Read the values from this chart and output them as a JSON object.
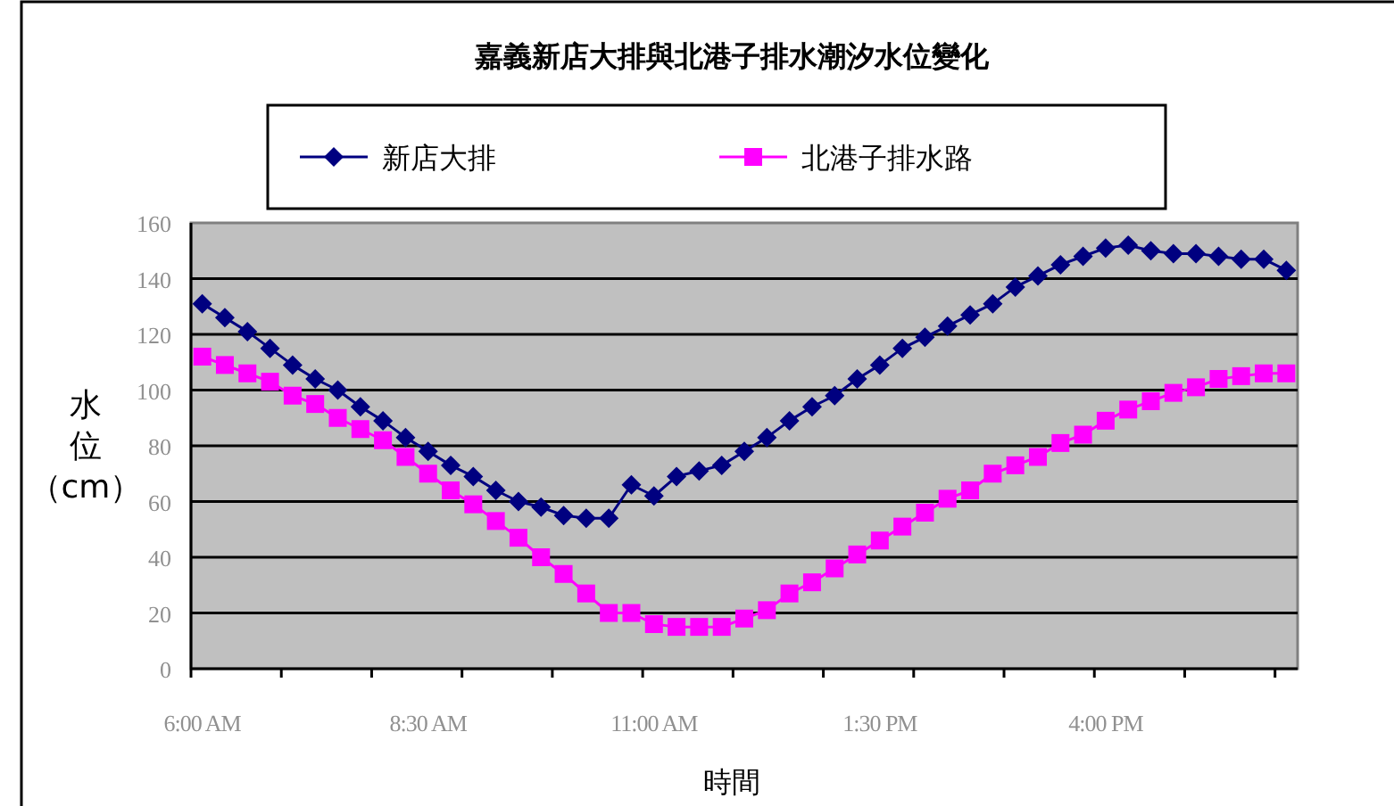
{
  "chart_data": {
    "type": "line",
    "title": "嘉義新店大排與北港子排水潮汐水位變化",
    "xlabel": "時間",
    "ylabel": "水位（cm）",
    "categories": [
      "6:00 AM",
      null,
      null,
      null,
      null,
      null,
      null,
      null,
      null,
      null,
      "8:30 AM",
      null,
      null,
      null,
      null,
      null,
      null,
      null,
      null,
      null,
      "11:00 AM",
      null,
      null,
      null,
      null,
      null,
      null,
      null,
      null,
      null,
      "1:30 PM",
      null,
      null,
      null,
      null,
      null,
      null,
      null,
      null,
      null,
      "4:00 PM",
      null,
      null,
      null,
      null,
      null,
      null,
      null,
      null
    ],
    "series": [
      {
        "name": "新店大排",
        "color": "#000080",
        "marker": "diamond",
        "values": [
          131,
          126,
          121,
          115,
          109,
          104,
          100,
          94,
          89,
          83,
          78,
          73,
          69,
          64,
          60,
          58,
          55,
          54,
          54,
          66,
          62,
          69,
          71,
          73,
          78,
          83,
          89,
          94,
          98,
          104,
          109,
          115,
          119,
          123,
          127,
          131,
          137,
          141,
          145,
          148,
          151,
          152,
          150,
          149,
          149,
          148,
          147,
          147,
          143
        ]
      },
      {
        "name": "北港子排水路",
        "color": "#ff00ff",
        "marker": "square",
        "values": [
          112,
          109,
          106,
          103,
          98,
          95,
          90,
          86,
          82,
          76,
          70,
          64,
          59,
          53,
          47,
          40,
          34,
          27,
          20,
          20,
          16,
          15,
          15,
          15,
          18,
          21,
          27,
          31,
          36,
          41,
          46,
          51,
          56,
          61,
          64,
          70,
          73,
          76,
          81,
          84,
          89,
          93,
          96,
          99,
          101,
          104,
          105,
          106,
          106
        ]
      }
    ],
    "ylim": [
      0,
      160
    ],
    "yticks": [
      0,
      20,
      40,
      60,
      80,
      100,
      120,
      140,
      160
    ],
    "grid": "y",
    "legend": "top",
    "line_style": "solid"
  }
}
